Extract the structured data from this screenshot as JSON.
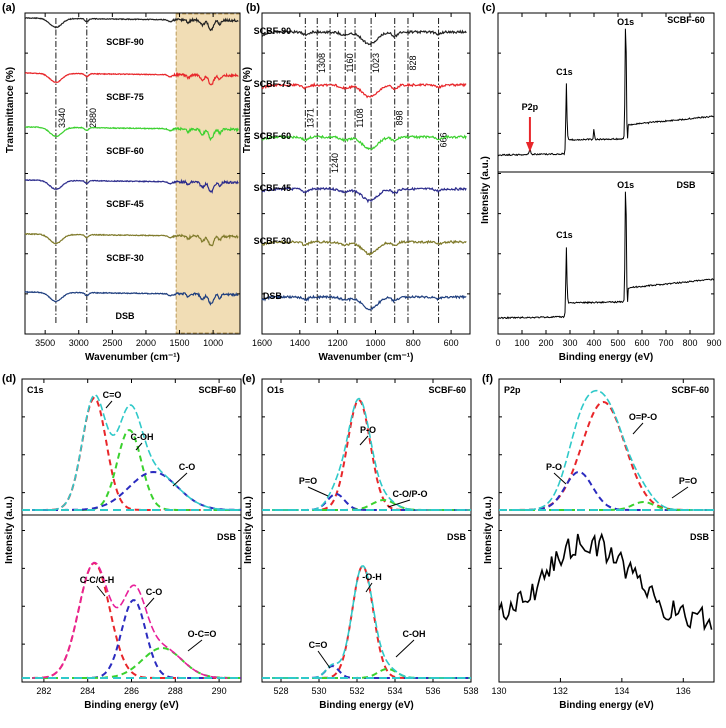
{
  "chart_data": [
    {
      "id": "a",
      "panel_label": "(a)",
      "type": "line",
      "title": "",
      "xlabel": "Wavenumber (cm⁻¹)",
      "ylabel": "Transmittance (%)",
      "xlim": [
        3800,
        600
      ],
      "xticks": [
        3500,
        3000,
        2500,
        2000,
        1500,
        1000
      ],
      "highlight_range": [
        1550,
        600
      ],
      "highlight_color": "#f1ddb5",
      "reference_lines": [
        {
          "x": 3340,
          "label": "3340"
        },
        {
          "x": 2880,
          "label": "2880"
        }
      ],
      "series": [
        {
          "name": "SCBF-90",
          "color": "#222222"
        },
        {
          "name": "SCBF-75",
          "color": "#e8262a"
        },
        {
          "name": "SCBF-60",
          "color": "#3bd12e"
        },
        {
          "name": "SCBF-45",
          "color": "#2b2b8c"
        },
        {
          "name": "SCBF-30",
          "color": "#7f7a2a"
        },
        {
          "name": "DSB",
          "color": "#1f3f7f"
        }
      ]
    },
    {
      "id": "b",
      "panel_label": "(b)",
      "type": "line",
      "title": "",
      "xlabel": "Wavenumber (cm⁻¹)",
      "ylabel": "Transmittance (%)",
      "xlim": [
        1600,
        500
      ],
      "xticks": [
        1600,
        1400,
        1200,
        1000,
        800,
        600
      ],
      "reference_lines": [
        {
          "x": 1371,
          "label": "1371"
        },
        {
          "x": 1308,
          "label": "1308"
        },
        {
          "x": 1240,
          "label": "1240"
        },
        {
          "x": 1160,
          "label": "1160"
        },
        {
          "x": 1108,
          "label": "1108"
        },
        {
          "x": 1023,
          "label": "1023"
        },
        {
          "x": 898,
          "label": "898"
        },
        {
          "x": 828,
          "label": "828"
        },
        {
          "x": 666,
          "label": "666"
        }
      ],
      "series": [
        {
          "name": "SCBF-90",
          "color": "#222222"
        },
        {
          "name": "SCBF-75",
          "color": "#e8262a"
        },
        {
          "name": "SCBF-60",
          "color": "#3bd12e"
        },
        {
          "name": "SCBF-45",
          "color": "#2b2b8c"
        },
        {
          "name": "SCBF-30",
          "color": "#7f7a2a"
        },
        {
          "name": "DSB",
          "color": "#1f3f7f"
        }
      ]
    },
    {
      "id": "c",
      "panel_label": "(c)",
      "type": "line",
      "title": "",
      "xlabel": "Binding energy (eV)",
      "ylabel": "Intensity (a.u.)",
      "xlim": [
        0,
        900
      ],
      "xticks": [
        0,
        100,
        200,
        300,
        400,
        500,
        600,
        700,
        800,
        900
      ],
      "subplots": [
        {
          "name": "SCBF-60",
          "peaks": [
            {
              "label": "P2p",
              "x": 133
            },
            {
              "label": "C1s",
              "x": 285
            },
            {
              "label": "O1s",
              "x": 532
            }
          ]
        },
        {
          "name": "DSB",
          "peaks": [
            {
              "label": "C1s",
              "x": 285
            },
            {
              "label": "O1s",
              "x": 532
            }
          ]
        }
      ]
    },
    {
      "id": "d",
      "panel_label": "(d)",
      "element": "C1s",
      "type": "line",
      "xlabel": "Binding energy (eV)",
      "ylabel": "Intensity (a.u.)",
      "xlim": [
        281,
        291
      ],
      "xticks": [
        282,
        284,
        286,
        288,
        290
      ],
      "subplots": [
        {
          "name": "SCBF-60",
          "components": [
            {
              "label": "C=O",
              "center": 284.3,
              "color": "#e8262a"
            },
            {
              "label": "C-OH",
              "center": 285.9,
              "color": "#3bd12e"
            },
            {
              "label": "C-O",
              "center": 287.0,
              "color": "#2b2bbf"
            }
          ]
        },
        {
          "name": "DSB",
          "components": [
            {
              "label": "C-C/C-H",
              "center": 284.3,
              "color": "#e8262a"
            },
            {
              "label": "C-O",
              "center": 286.1,
              "color": "#2b2bbf"
            },
            {
              "label": "O-C=O",
              "center": 287.4,
              "color": "#3bd12e"
            }
          ]
        }
      ]
    },
    {
      "id": "e",
      "panel_label": "(e)",
      "element": "O1s",
      "type": "line",
      "xlabel": "Binding energy (eV)",
      "ylabel": "Intensity (a.u.)",
      "xlim": [
        527,
        538
      ],
      "xticks": [
        528,
        530,
        532,
        534,
        536,
        538
      ],
      "subplots": [
        {
          "name": "SCBF-60",
          "components": [
            {
              "label": "P-O",
              "center": 532.1,
              "color": "#e8262a"
            },
            {
              "label": "P=O",
              "center": 530.9,
              "color": "#2b2bbf"
            },
            {
              "label": "C-O/P-O",
              "center": 533.4,
              "color": "#3bd12e"
            }
          ]
        },
        {
          "name": "DSB",
          "components": [
            {
              "label": "-O-H",
              "center": 532.3,
              "color": "#e8262a"
            },
            {
              "label": "C=O",
              "center": 530.7,
              "color": "#2b2bbf"
            },
            {
              "label": "C-OH",
              "center": 533.6,
              "color": "#3bd12e"
            }
          ]
        }
      ]
    },
    {
      "id": "f",
      "panel_label": "(f)",
      "element": "P2p",
      "type": "line",
      "xlabel": "Binding energy (eV)",
      "ylabel": "Intensity (a.u.)",
      "xlim": [
        130,
        137
      ],
      "xticks": [
        130,
        132,
        134,
        136
      ],
      "subplots": [
        {
          "name": "SCBF-60",
          "components": [
            {
              "label": "O=P-O",
              "center": 133.4,
              "color": "#e8262a"
            },
            {
              "label": "P-O",
              "center": 132.6,
              "color": "#2b2bbf"
            },
            {
              "label": "P=O",
              "center": 134.7,
              "color": "#3bd12e"
            }
          ]
        },
        {
          "name": "DSB",
          "noisy": true,
          "center": 132.9
        }
      ]
    }
  ]
}
